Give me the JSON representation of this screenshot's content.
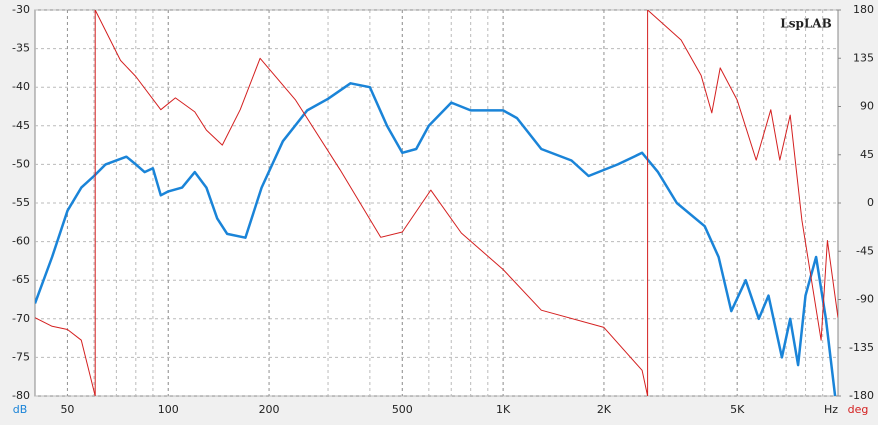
{
  "chart_data": {
    "type": "line",
    "watermark": "LspLAB",
    "x_label": "Hz",
    "y_label": "dB",
    "y2_label": "deg",
    "xscale": "log",
    "grid": true,
    "xlim": [
      40,
      10000
    ],
    "xticks": [
      50,
      100,
      200,
      500,
      {
        "value": 1000,
        "label": "1K"
      },
      {
        "value": 2000,
        "label": "2K"
      },
      {
        "value": 5000,
        "label": "5K"
      }
    ],
    "ylim": [
      -80,
      -30
    ],
    "yticks": [
      -80,
      -75,
      -70,
      -65,
      -60,
      -55,
      -50,
      -45,
      -40,
      -35,
      -30
    ],
    "y2lim": [
      -180,
      180
    ],
    "y2ticks": [
      -180,
      -135,
      -90,
      -45,
      0,
      45,
      90,
      135,
      180
    ],
    "series": [
      {
        "color": "#1a84d8",
        "axis": "y",
        "x": [
          40,
          45,
          50,
          55,
          60,
          65,
          75,
          80,
          85,
          90,
          95,
          100,
          110,
          120,
          130,
          140,
          150,
          170,
          190,
          220,
          260,
          300,
          350,
          400,
          450,
          500,
          550,
          600,
          700,
          800,
          1000,
          1100,
          1300,
          1600,
          1800,
          2200,
          2600,
          2900,
          3300,
          4000,
          4400,
          4800,
          5300,
          5800,
          6200,
          6800,
          7200,
          7600,
          8000,
          8600,
          9200,
          9800
        ],
        "values": [
          -68,
          -62,
          -56,
          -53,
          -51.5,
          -50,
          -49,
          -50,
          -51,
          -50.5,
          -54,
          -53.5,
          -53,
          -51,
          -53,
          -57,
          -59,
          -59.5,
          -53,
          -47,
          -43,
          -41.5,
          -39.5,
          -40,
          -45,
          -48.5,
          -48,
          -45,
          -42,
          -43,
          -43,
          -44,
          -48,
          -49.5,
          -51.5,
          -50,
          -48.5,
          -51,
          -55,
          -58,
          -62,
          -69,
          -65,
          -70,
          -67,
          -75,
          -70,
          -76,
          -67,
          -62,
          -70,
          -80
        ]
      },
      {
        "color": "#d42020",
        "axis": "y2",
        "x": [
          40,
          45,
          50,
          55,
          60.5,
          60.5,
          72,
          80,
          95,
          105,
          120,
          130,
          145,
          164,
          188,
          240,
          326,
          431,
          500,
          608,
          750,
          1000,
          1300,
          2000,
          2600,
          2700,
          2700,
          3400,
          3900,
          4200,
          4450,
          5000,
          5700,
          6300,
          6700,
          7200,
          7800,
          8900,
          9300,
          10000
        ],
        "values": [
          -107,
          -115,
          -118,
          -128,
          -180,
          180,
          133,
          118,
          87,
          98,
          85,
          68,
          54,
          87,
          135,
          96,
          31,
          -32,
          -27,
          12,
          -28,
          -62,
          -100,
          -116,
          -156,
          -180,
          180,
          152,
          119,
          84,
          126,
          96,
          40,
          87,
          40,
          82,
          -16,
          -128,
          -35,
          -107
        ]
      }
    ]
  }
}
